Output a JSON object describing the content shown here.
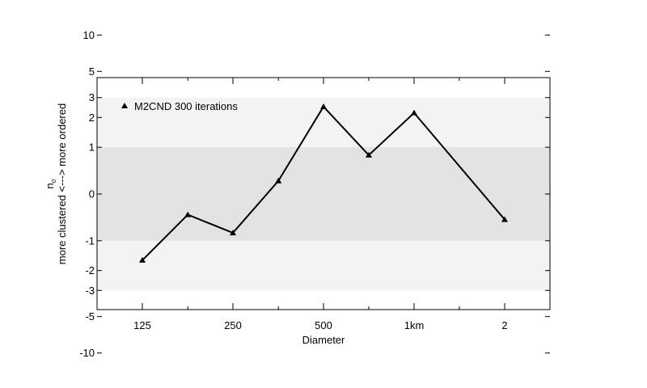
{
  "chart_data": {
    "type": "line",
    "x_tick_labels": [
      "125",
      "250",
      "500",
      "1km",
      "2"
    ],
    "xlabel": "Diameter",
    "ylabel_line1": "n",
    "ylabel_subscript": "σ",
    "ylabel_line2": "more clustered <---> more ordered",
    "y_ticks": [
      10,
      5,
      3,
      2,
      1,
      0,
      -1,
      -2,
      -3,
      -5,
      -10
    ],
    "y_scale": "asinh",
    "bands": [
      {
        "from": -3,
        "to": 3,
        "color": "#f3f3f3"
      },
      {
        "from": -1,
        "to": 1,
        "color": "#e3e3e3"
      }
    ],
    "legend_position": "top-left",
    "series": [
      {
        "name": "M2CND 300 iterations",
        "marker": "triangle",
        "color": "#000000",
        "x": [
          125,
          177,
          250,
          354,
          500,
          707,
          1000,
          2000
        ],
        "y": [
          -1.6,
          -0.4,
          -0.8,
          0.25,
          2.5,
          0.8,
          2.2,
          -0.5
        ]
      }
    ]
  }
}
